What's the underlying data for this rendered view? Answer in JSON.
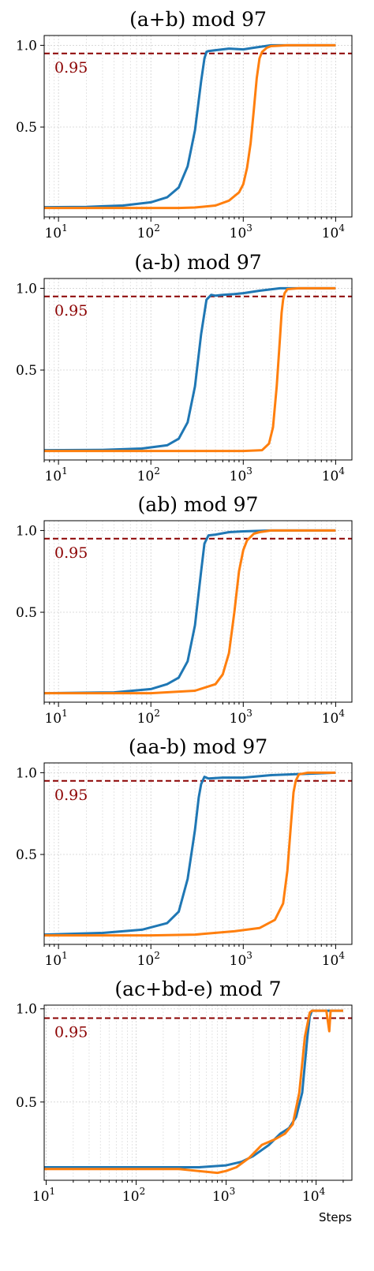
{
  "colors": {
    "series_a": "#1f77b4",
    "series_b": "#ff7f0e",
    "reference": "#8b0000"
  },
  "chart_data": [
    {
      "type": "line",
      "title": "(a+b) mod 97",
      "xscale": "log",
      "xlim": [
        7,
        15000
      ],
      "ylim": [
        -0.05,
        1.06
      ],
      "xticks": [
        {
          "base": "10",
          "exp": "1"
        },
        {
          "base": "10",
          "exp": "2"
        },
        {
          "base": "10",
          "exp": "3"
        },
        {
          "base": "10",
          "exp": "4"
        }
      ],
      "yticks": [
        "0.5",
        "1.0"
      ],
      "grid": true,
      "reference": {
        "y": 0.95,
        "label": "0.95"
      },
      "series": [
        {
          "x": [
            7,
            20,
            50,
            100,
            150,
            200,
            250,
            300,
            350,
            380,
            400,
            420,
            500,
            700,
            1000,
            1300,
            2000,
            10000
          ],
          "y": [
            0.01,
            0.012,
            0.02,
            0.04,
            0.07,
            0.13,
            0.26,
            0.48,
            0.78,
            0.92,
            0.96,
            0.965,
            0.97,
            0.98,
            0.975,
            0.985,
            1.0,
            1.0
          ]
        },
        {
          "x": [
            7,
            50,
            200,
            300,
            500,
            700,
            900,
            1000,
            1100,
            1200,
            1300,
            1400,
            1500,
            1600,
            1800,
            2000,
            3000,
            10000
          ],
          "y": [
            0.005,
            0.005,
            0.005,
            0.008,
            0.02,
            0.05,
            0.1,
            0.15,
            0.25,
            0.4,
            0.6,
            0.8,
            0.92,
            0.96,
            0.985,
            0.995,
            1.0,
            1.0
          ]
        }
      ]
    },
    {
      "type": "line",
      "title": "(a-b) mod 97",
      "xscale": "log",
      "xlim": [
        7,
        15000
      ],
      "ylim": [
        -0.05,
        1.06
      ],
      "xticks": [
        {
          "base": "10",
          "exp": "1"
        },
        {
          "base": "10",
          "exp": "2"
        },
        {
          "base": "10",
          "exp": "3"
        },
        {
          "base": "10",
          "exp": "4"
        }
      ],
      "yticks": [
        "0.5",
        "1.0"
      ],
      "grid": true,
      "reference": {
        "y": 0.95,
        "label": "0.95"
      },
      "series": [
        {
          "x": [
            7,
            30,
            80,
            150,
            200,
            250,
            300,
            350,
            400,
            450,
            500,
            600,
            800,
            1000,
            1500,
            2500,
            10000
          ],
          "y": [
            0.01,
            0.012,
            0.02,
            0.04,
            0.08,
            0.18,
            0.4,
            0.72,
            0.93,
            0.96,
            0.955,
            0.96,
            0.965,
            0.97,
            0.985,
            1.0,
            1.0
          ]
        },
        {
          "x": [
            7,
            100,
            1000,
            1600,
            1900,
            2100,
            2300,
            2500,
            2600,
            2700,
            2800,
            3000,
            4000,
            10000
          ],
          "y": [
            0.005,
            0.005,
            0.005,
            0.01,
            0.05,
            0.15,
            0.4,
            0.7,
            0.85,
            0.93,
            0.97,
            0.995,
            1.0,
            1.0
          ]
        }
      ]
    },
    {
      "type": "line",
      "title": "(ab) mod 97",
      "xscale": "log",
      "xlim": [
        7,
        15000
      ],
      "ylim": [
        -0.05,
        1.06
      ],
      "xticks": [
        {
          "base": "10",
          "exp": "1"
        },
        {
          "base": "10",
          "exp": "2"
        },
        {
          "base": "10",
          "exp": "3"
        },
        {
          "base": "10",
          "exp": "4"
        }
      ],
      "yticks": [
        "0.5",
        "1.0"
      ],
      "grid": true,
      "reference": {
        "y": 0.95,
        "label": "0.95"
      },
      "series": [
        {
          "x": [
            7,
            40,
            100,
            150,
            200,
            250,
            300,
            350,
            380,
            420,
            500,
            700,
            1000,
            2000,
            10000
          ],
          "y": [
            0.005,
            0.01,
            0.03,
            0.06,
            0.1,
            0.2,
            0.42,
            0.75,
            0.92,
            0.97,
            0.975,
            0.99,
            0.995,
            1.0,
            1.0
          ]
        },
        {
          "x": [
            7,
            100,
            300,
            500,
            600,
            700,
            800,
            900,
            1000,
            1100,
            1300,
            1500,
            2000,
            10000
          ],
          "y": [
            0.005,
            0.005,
            0.02,
            0.06,
            0.12,
            0.25,
            0.5,
            0.75,
            0.88,
            0.94,
            0.98,
            0.99,
            1.0,
            1.0
          ]
        }
      ]
    },
    {
      "type": "line",
      "title": "(aa-b) mod 97",
      "xscale": "log",
      "xlim": [
        7,
        15000
      ],
      "ylim": [
        -0.05,
        1.06
      ],
      "xticks": [
        {
          "base": "10",
          "exp": "1"
        },
        {
          "base": "10",
          "exp": "2"
        },
        {
          "base": "10",
          "exp": "3"
        },
        {
          "base": "10",
          "exp": "4"
        }
      ],
      "yticks": [
        "0.5",
        "1.0"
      ],
      "grid": true,
      "reference": {
        "y": 0.95,
        "label": "0.95"
      },
      "series": [
        {
          "x": [
            7,
            30,
            80,
            150,
            200,
            250,
            300,
            330,
            350,
            380,
            420,
            600,
            1000,
            2000,
            10000
          ],
          "y": [
            0.01,
            0.02,
            0.04,
            0.08,
            0.15,
            0.35,
            0.65,
            0.85,
            0.93,
            0.975,
            0.965,
            0.97,
            0.97,
            0.985,
            1.0
          ]
        },
        {
          "x": [
            7,
            100,
            300,
            800,
            1500,
            2200,
            2700,
            3000,
            3300,
            3500,
            3700,
            4000,
            5000,
            10000
          ],
          "y": [
            0.005,
            0.005,
            0.01,
            0.03,
            0.05,
            0.1,
            0.2,
            0.4,
            0.7,
            0.88,
            0.95,
            0.99,
            1.0,
            1.0
          ]
        }
      ]
    },
    {
      "type": "line",
      "title": "(ac+bd-e) mod 7",
      "xscale": "log",
      "xlim": [
        9.5,
        25000
      ],
      "ylim": [
        0.08,
        1.02
      ],
      "xticks": [
        {
          "base": "10",
          "exp": "1"
        },
        {
          "base": "10",
          "exp": "2"
        },
        {
          "base": "10",
          "exp": "3"
        },
        {
          "base": "10",
          "exp": "4"
        }
      ],
      "yticks": [
        "0.5",
        "1.0"
      ],
      "grid": true,
      "reference": {
        "y": 0.95,
        "label": "0.95"
      },
      "xlabel": "Steps",
      "series": [
        {
          "x": [
            9.5,
            100,
            500,
            1000,
            1500,
            2000,
            3000,
            4000,
            5000,
            6000,
            7000,
            8000,
            8500,
            9000,
            10000,
            12000,
            20000
          ],
          "y": [
            0.15,
            0.15,
            0.15,
            0.16,
            0.18,
            0.21,
            0.27,
            0.33,
            0.36,
            0.42,
            0.55,
            0.85,
            0.96,
            0.99,
            0.99,
            0.99,
            0.99
          ]
        },
        {
          "x": [
            9.5,
            100,
            300,
            800,
            1000,
            1300,
            1800,
            2500,
            3500,
            4500,
            5500,
            6500,
            7500,
            8500,
            9000,
            10000,
            13000,
            14000,
            14500,
            15000,
            20000
          ],
          "y": [
            0.14,
            0.14,
            0.14,
            0.12,
            0.13,
            0.15,
            0.2,
            0.27,
            0.3,
            0.33,
            0.38,
            0.55,
            0.85,
            0.98,
            0.99,
            0.99,
            0.99,
            0.88,
            0.99,
            0.99,
            0.99
          ]
        }
      ]
    }
  ]
}
